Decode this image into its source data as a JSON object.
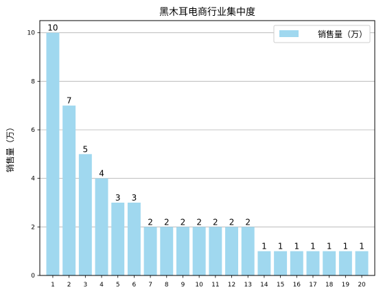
{
  "chart_data": {
    "type": "bar",
    "title": "黑木耳电商行业集中度",
    "xlabel": "",
    "ylabel": "销售量（万）",
    "categories": [
      "1",
      "2",
      "3",
      "4",
      "5",
      "6",
      "7",
      "8",
      "9",
      "10",
      "11",
      "12",
      "13",
      "14",
      "15",
      "16",
      "17",
      "18",
      "19",
      "20"
    ],
    "series": [
      {
        "name": "销售量（万）",
        "values": [
          10,
          7,
          5,
          4,
          3,
          3,
          2,
          2,
          2,
          2,
          2,
          2,
          2,
          1,
          1,
          1,
          1,
          1,
          1,
          1
        ]
      }
    ],
    "ylim": [
      0,
      10.5
    ],
    "yticks": [
      0,
      2,
      4,
      6,
      8,
      10
    ],
    "grid": "horizontal",
    "legend_position": "top-right",
    "data_labels": true,
    "bar_color": "#a0d8ef",
    "grid_color": "#b0b0b0"
  }
}
